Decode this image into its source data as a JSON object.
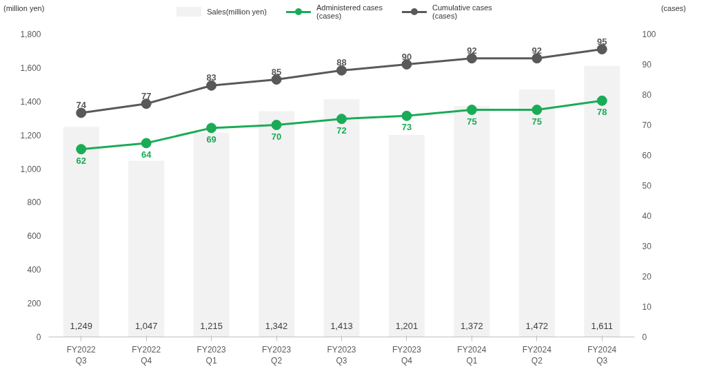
{
  "chart_data": {
    "type": "bar",
    "ylabel": "(million yen)",
    "y2label": "(cases)",
    "categories": [
      "FY2022\nQ3",
      "FY2022\nQ4",
      "FY2023\nQ1",
      "FY2023\nQ2",
      "FY2023\nQ3",
      "FY2023\nQ4",
      "FY2024\nQ1",
      "FY2024\nQ2",
      "FY2024\nQ3"
    ],
    "series": [
      {
        "name": "Sales(million yen)",
        "color": "#f2f2f2",
        "values": [
          1249,
          1047,
          1215,
          1342,
          1413,
          1201,
          1372,
          1472,
          1611
        ],
        "value_labels": [
          "1,249",
          "1,047",
          "1,215",
          "1,342",
          "1,413",
          "1,201",
          "1,372",
          "1,472",
          "1,611"
        ]
      },
      {
        "name": "Administered cases\n(cases)",
        "type": "line",
        "axis": "y2",
        "color": "#1aab57",
        "values": [
          62,
          64,
          69,
          70,
          72,
          73,
          75,
          75,
          78
        ]
      },
      {
        "name": "Cumulative cases\n(cases)",
        "type": "line",
        "axis": "y2",
        "color": "#595959",
        "values": [
          74,
          77,
          83,
          85,
          88,
          90,
          92,
          92,
          95
        ]
      }
    ],
    "data_labels": true,
    "marker": "circle",
    "line_style": "solid",
    "legend": "top",
    "grid": false,
    "ylim": [
      0,
      1800
    ],
    "yticks": [
      0,
      200,
      400,
      600,
      800,
      {
        "value": 1000,
        "label": "1,000"
      },
      {
        "value": 1200,
        "label": "1,200"
      },
      {
        "value": 1400,
        "label": "1,400"
      },
      {
        "value": 1600,
        "label": "1,600"
      },
      {
        "value": 1800,
        "label": "1,800"
      }
    ],
    "y2lim": [
      0,
      100
    ],
    "y2ticks": [
      0,
      10,
      20,
      30,
      40,
      50,
      60,
      70,
      80,
      90,
      100
    ]
  }
}
